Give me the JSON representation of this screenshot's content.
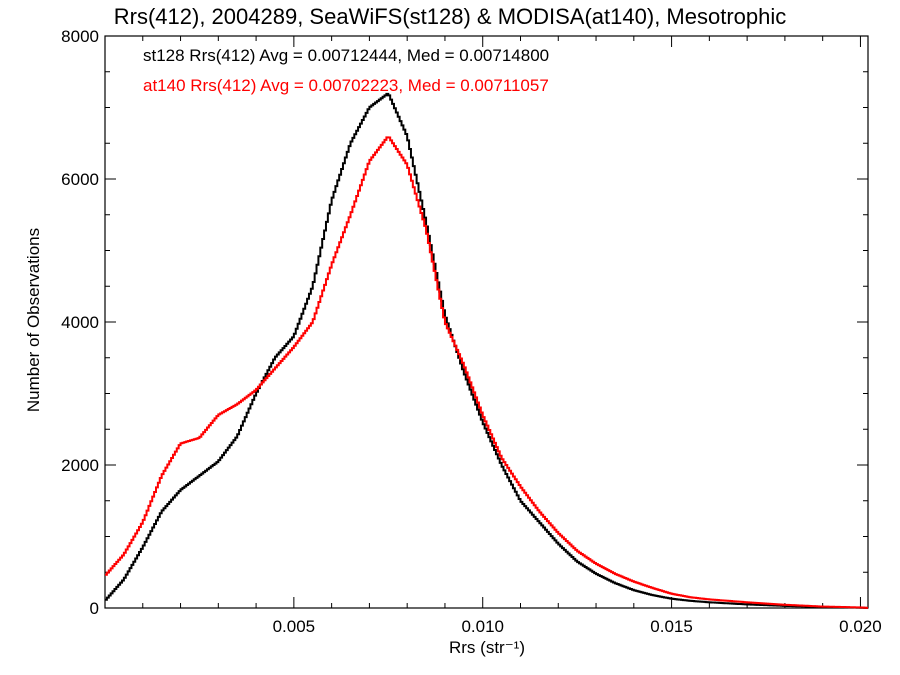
{
  "colors": {
    "st128": "#000000",
    "at140": "#ff0000"
  },
  "chart_data": {
    "type": "line",
    "title": "Rrs(412), 2004289, SeaWiFS(st128) & MODISA(at140), Mesotrophic",
    "xlabel": "Rrs (str⁻¹)",
    "ylabel": "Number of Observations",
    "xlim": [
      0.0,
      0.0202
    ],
    "ylim": [
      0,
      8000
    ],
    "xticks": [
      0.005,
      0.01,
      0.015,
      0.02
    ],
    "xtick_labels": [
      "0.005",
      "0.010",
      "0.015",
      "0.020"
    ],
    "yticks": [
      0,
      2000,
      4000,
      6000,
      8000
    ],
    "ytick_labels": [
      "0",
      "2000",
      "4000",
      "6000",
      "8000"
    ],
    "grid": false,
    "step": true,
    "annotations": [
      "st128 Rrs(412) Avg = 0.00712444, Med = 0.00714800",
      "at140 Rrs(412) Avg = 0.00702223, Med = 0.00711057"
    ],
    "series": [
      {
        "name": "st128",
        "color": "#000000",
        "points": [
          [
            0.0,
            100
          ],
          [
            0.0005,
            400
          ],
          [
            0.001,
            850
          ],
          [
            0.0015,
            1350
          ],
          [
            0.002,
            1650
          ],
          [
            0.0025,
            1850
          ],
          [
            0.003,
            2050
          ],
          [
            0.0035,
            2400
          ],
          [
            0.004,
            3000
          ],
          [
            0.0045,
            3500
          ],
          [
            0.005,
            3800
          ],
          [
            0.0055,
            4500
          ],
          [
            0.006,
            5700
          ],
          [
            0.0065,
            6500
          ],
          [
            0.007,
            7000
          ],
          [
            0.0075,
            7200
          ],
          [
            0.008,
            6600
          ],
          [
            0.0085,
            5400
          ],
          [
            0.009,
            4100
          ],
          [
            0.0095,
            3300
          ],
          [
            0.01,
            2600
          ],
          [
            0.0105,
            2000
          ],
          [
            0.011,
            1500
          ],
          [
            0.0115,
            1200
          ],
          [
            0.012,
            900
          ],
          [
            0.0125,
            650
          ],
          [
            0.013,
            480
          ],
          [
            0.0135,
            350
          ],
          [
            0.014,
            250
          ],
          [
            0.0145,
            180
          ],
          [
            0.015,
            130
          ],
          [
            0.0155,
            100
          ],
          [
            0.016,
            80
          ],
          [
            0.017,
            50
          ],
          [
            0.018,
            30
          ],
          [
            0.019,
            15
          ],
          [
            0.02,
            5
          ],
          [
            0.0202,
            0
          ]
        ]
      },
      {
        "name": "at140",
        "color": "#ff0000",
        "points": [
          [
            0.0,
            450
          ],
          [
            0.0005,
            750
          ],
          [
            0.001,
            1200
          ],
          [
            0.0015,
            1850
          ],
          [
            0.002,
            2300
          ],
          [
            0.0025,
            2380
          ],
          [
            0.003,
            2700
          ],
          [
            0.0035,
            2850
          ],
          [
            0.004,
            3050
          ],
          [
            0.0045,
            3350
          ],
          [
            0.005,
            3650
          ],
          [
            0.0055,
            4000
          ],
          [
            0.006,
            4800
          ],
          [
            0.0065,
            5500
          ],
          [
            0.007,
            6250
          ],
          [
            0.0075,
            6600
          ],
          [
            0.008,
            6200
          ],
          [
            0.0085,
            5300
          ],
          [
            0.009,
            4000
          ],
          [
            0.0095,
            3400
          ],
          [
            0.01,
            2700
          ],
          [
            0.0105,
            2100
          ],
          [
            0.011,
            1700
          ],
          [
            0.0115,
            1350
          ],
          [
            0.012,
            1050
          ],
          [
            0.0125,
            800
          ],
          [
            0.013,
            620
          ],
          [
            0.0135,
            480
          ],
          [
            0.014,
            370
          ],
          [
            0.0145,
            280
          ],
          [
            0.015,
            200
          ],
          [
            0.0155,
            150
          ],
          [
            0.016,
            120
          ],
          [
            0.017,
            80
          ],
          [
            0.018,
            45
          ],
          [
            0.019,
            20
          ],
          [
            0.02,
            8
          ],
          [
            0.0202,
            0
          ]
        ]
      }
    ]
  }
}
